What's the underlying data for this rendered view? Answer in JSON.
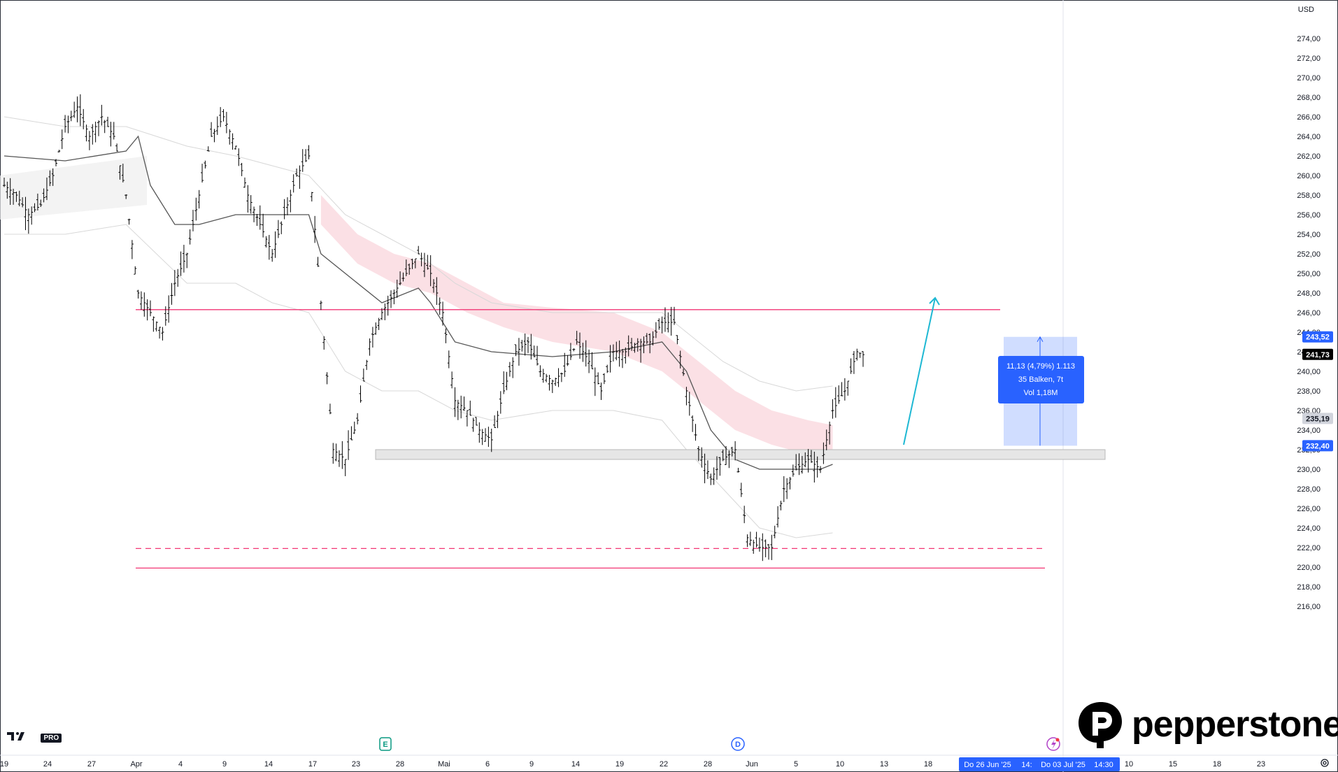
{
  "currency": "USD",
  "chart_data": {
    "type": "candlestick",
    "ylim": [
      215,
      276
    ],
    "y_ticks": [
      216,
      218,
      220,
      222,
      224,
      226,
      228,
      230,
      232,
      234,
      236,
      238,
      240,
      242,
      244,
      246,
      248,
      250,
      252,
      254,
      256,
      258,
      260,
      262,
      264,
      266,
      268,
      270,
      272,
      274
    ],
    "y_tick_labels": [
      "216,00",
      "218,00",
      "220,00",
      "222,00",
      "224,00",
      "226,00",
      "228,00",
      "230,00",
      "232,00",
      "234,00",
      "236,00",
      "238,00",
      "240,00",
      "242,00",
      "244,00",
      "246,00",
      "248,00",
      "250,00",
      "252,00",
      "254,00",
      "256,00",
      "258,00",
      "260,00",
      "262,00",
      "264,00",
      "266,00",
      "268,00",
      "270,00",
      "272,00",
      "274,00"
    ],
    "x_labels": [
      "19",
      "24",
      "27",
      "Apr",
      "4",
      "9",
      "14",
      "17",
      "23",
      "28",
      "Mai",
      "6",
      "9",
      "14",
      "19",
      "22",
      "28",
      "Jun",
      "5",
      "10",
      "13",
      "18",
      "Do 26 Jun '25",
      "14:",
      "Do 03 Jul '25",
      "14:30",
      "10",
      "15",
      "18",
      "23"
    ],
    "price_path": [
      [
        0,
        259
      ],
      [
        2,
        258
      ],
      [
        4,
        256
      ],
      [
        6,
        257
      ],
      [
        8,
        260
      ],
      [
        10,
        265
      ],
      [
        12,
        267
      ],
      [
        14,
        264
      ],
      [
        16,
        266
      ],
      [
        18,
        264
      ],
      [
        20,
        258
      ],
      [
        22,
        248
      ],
      [
        24,
        246
      ],
      [
        26,
        244
      ],
      [
        28,
        249
      ],
      [
        30,
        252
      ],
      [
        32,
        258
      ],
      [
        34,
        264
      ],
      [
        36,
        266
      ],
      [
        38,
        263
      ],
      [
        40,
        258
      ],
      [
        42,
        255
      ],
      [
        44,
        252
      ],
      [
        46,
        256
      ],
      [
        48,
        260
      ],
      [
        50,
        262
      ],
      [
        52,
        247
      ],
      [
        54,
        232
      ],
      [
        56,
        231
      ],
      [
        58,
        235
      ],
      [
        60,
        243
      ],
      [
        62,
        246
      ],
      [
        64,
        248
      ],
      [
        66,
        250
      ],
      [
        68,
        252
      ],
      [
        70,
        250
      ],
      [
        72,
        246
      ],
      [
        74,
        237
      ],
      [
        76,
        236
      ],
      [
        78,
        234
      ],
      [
        80,
        233
      ],
      [
        82,
        238
      ],
      [
        84,
        242
      ],
      [
        86,
        243
      ],
      [
        88,
        240
      ],
      [
        90,
        239
      ],
      [
        92,
        240
      ],
      [
        94,
        243
      ],
      [
        96,
        241
      ],
      [
        98,
        238
      ],
      [
        100,
        242
      ],
      [
        102,
        242
      ],
      [
        104,
        243
      ],
      [
        106,
        243
      ],
      [
        108,
        245
      ],
      [
        110,
        245
      ],
      [
        112,
        238
      ],
      [
        114,
        232
      ],
      [
        116,
        229
      ],
      [
        118,
        231
      ],
      [
        120,
        232
      ],
      [
        122,
        223
      ],
      [
        124,
        222
      ],
      [
        126,
        222
      ],
      [
        128,
        228
      ],
      [
        130,
        230
      ],
      [
        132,
        231
      ],
      [
        134,
        230
      ],
      [
        136,
        236
      ],
      [
        138,
        238
      ],
      [
        140,
        242
      ],
      [
        141,
        241.7
      ]
    ],
    "vwap_path": [
      [
        0,
        262
      ],
      [
        10,
        261.5
      ],
      [
        20,
        262.5
      ],
      [
        22,
        264
      ],
      [
        24,
        259
      ],
      [
        28,
        255
      ],
      [
        32,
        255
      ],
      [
        38,
        256
      ],
      [
        44,
        256
      ],
      [
        50,
        256
      ],
      [
        52,
        252
      ],
      [
        56,
        250
      ],
      [
        62,
        247
      ],
      [
        68,
        248.5
      ],
      [
        70,
        247
      ],
      [
        74,
        243
      ],
      [
        80,
        242
      ],
      [
        90,
        241.5
      ],
      [
        100,
        242
      ],
      [
        108,
        243
      ],
      [
        112,
        240
      ],
      [
        116,
        234
      ],
      [
        120,
        231
      ],
      [
        124,
        230
      ],
      [
        128,
        230
      ],
      [
        134,
        230
      ],
      [
        136,
        230.5
      ]
    ],
    "upper_band_path": [
      [
        0,
        266
      ],
      [
        10,
        265
      ],
      [
        20,
        265
      ],
      [
        30,
        263
      ],
      [
        38,
        262
      ],
      [
        44,
        261
      ],
      [
        50,
        260
      ],
      [
        56,
        256
      ],
      [
        62,
        254
      ],
      [
        68,
        252
      ],
      [
        74,
        249
      ],
      [
        80,
        247
      ],
      [
        90,
        246
      ],
      [
        100,
        246
      ],
      [
        108,
        246
      ],
      [
        112,
        244
      ],
      [
        118,
        241
      ],
      [
        124,
        239
      ],
      [
        130,
        238
      ],
      [
        136,
        238.5
      ]
    ],
    "lower_band_path": [
      [
        0,
        254
      ],
      [
        10,
        254
      ],
      [
        20,
        255
      ],
      [
        30,
        249
      ],
      [
        38,
        249
      ],
      [
        44,
        247
      ],
      [
        50,
        246
      ],
      [
        56,
        240
      ],
      [
        62,
        238
      ],
      [
        68,
        238
      ],
      [
        74,
        236
      ],
      [
        80,
        235
      ],
      [
        90,
        236
      ],
      [
        100,
        236
      ],
      [
        108,
        235
      ],
      [
        112,
        232
      ],
      [
        118,
        228
      ],
      [
        124,
        224
      ],
      [
        130,
        223
      ],
      [
        136,
        223.5
      ]
    ],
    "cloud_upper_path": [
      [
        52,
        258
      ],
      [
        58,
        254
      ],
      [
        64,
        252
      ],
      [
        70,
        251
      ],
      [
        76,
        249
      ],
      [
        82,
        247
      ],
      [
        90,
        246.5
      ],
      [
        100,
        246
      ],
      [
        108,
        244
      ],
      [
        114,
        241
      ],
      [
        120,
        238
      ],
      [
        126,
        236
      ],
      [
        132,
        235
      ],
      [
        136,
        234.5
      ]
    ],
    "cloud_lower_path": [
      [
        52,
        255
      ],
      [
        58,
        251
      ],
      [
        64,
        249
      ],
      [
        70,
        248
      ],
      [
        76,
        246
      ],
      [
        82,
        244.5
      ],
      [
        90,
        243
      ],
      [
        100,
        242
      ],
      [
        108,
        240
      ],
      [
        114,
        237
      ],
      [
        120,
        234
      ],
      [
        126,
        232.5
      ],
      [
        132,
        231.5
      ],
      [
        136,
        231.5
      ]
    ],
    "horizontal_levels": [
      {
        "price": 246.3,
        "style": "solid",
        "color": "#f23674"
      },
      {
        "price": 221.9,
        "style": "dashed",
        "color": "#f23674"
      },
      {
        "price": 219.9,
        "style": "solid",
        "color": "#f23674"
      }
    ],
    "support_zone": {
      "price_low": 231.0,
      "price_high": 232.0
    },
    "projection_arrow": {
      "from": [
        124,
        232.5
      ],
      "to": [
        129,
        247.5
      ],
      "color": "#1eb8d3"
    },
    "measure_box": {
      "price_low": 232.4,
      "price_high": 243.52,
      "label_line1": "11,13 (4,79%) 1.113",
      "label_line2": "35 Balken, 7t",
      "label_line3": "Vol 1,18M"
    },
    "price_labels": [
      {
        "value": "243,52",
        "price": 243.52,
        "bg": "#2962ff",
        "fg": "#ffffff"
      },
      {
        "value": "241,73",
        "price": 241.73,
        "bg": "#000000",
        "fg": "#ffffff"
      },
      {
        "value": "235,19",
        "price": 235.19,
        "bg": "#d1d4dc",
        "fg": "#131722"
      },
      {
        "value": "232,40",
        "price": 232.4,
        "bg": "#2962ff",
        "fg": "#ffffff"
      }
    ],
    "event_markers": [
      {
        "letter": "E",
        "type": "earnings",
        "color": "#089981"
      },
      {
        "letter": "D",
        "type": "dividend",
        "color": "#2962ff"
      }
    ]
  },
  "brand": {
    "name": "pepperstone"
  },
  "tv_badge": "PRO"
}
